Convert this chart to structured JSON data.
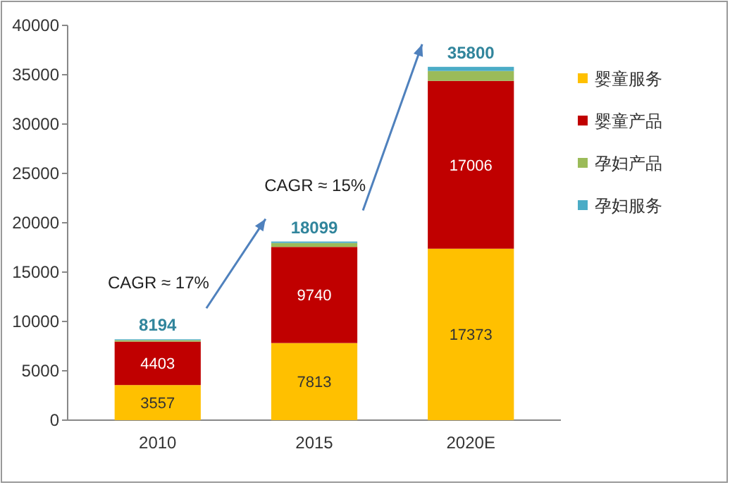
{
  "chart_data": {
    "type": "bar",
    "stacked": true,
    "categories": [
      "2010",
      "2015",
      "2020E"
    ],
    "series": [
      {
        "name": "婴童服务",
        "color": "#ffc000",
        "values": [
          3557,
          7813,
          17373
        ],
        "value_labels": [
          "3557",
          "7813",
          "17373"
        ]
      },
      {
        "name": "婴童产品",
        "color": "#c00000",
        "values": [
          4403,
          9740,
          17006
        ],
        "value_labels": [
          "4403",
          "9740",
          "17006"
        ]
      },
      {
        "name": "孕妇产品",
        "color": "#9bbb59",
        "values": [
          150,
          400,
          1000
        ]
      },
      {
        "name": "孕妇服务",
        "color": "#4bacc6",
        "values": [
          84,
          146,
          421
        ]
      }
    ],
    "totals": [
      "8194",
      "18099",
      "35800"
    ],
    "ylim": [
      0,
      40000
    ],
    "yticks": [
      0,
      5000,
      10000,
      15000,
      20000,
      25000,
      30000,
      35000,
      40000
    ],
    "annotations": [
      {
        "text": "CAGR ≈ 17%"
      },
      {
        "text": "CAGR ≈ 15%"
      }
    ],
    "legend": "right",
    "grid": false
  }
}
